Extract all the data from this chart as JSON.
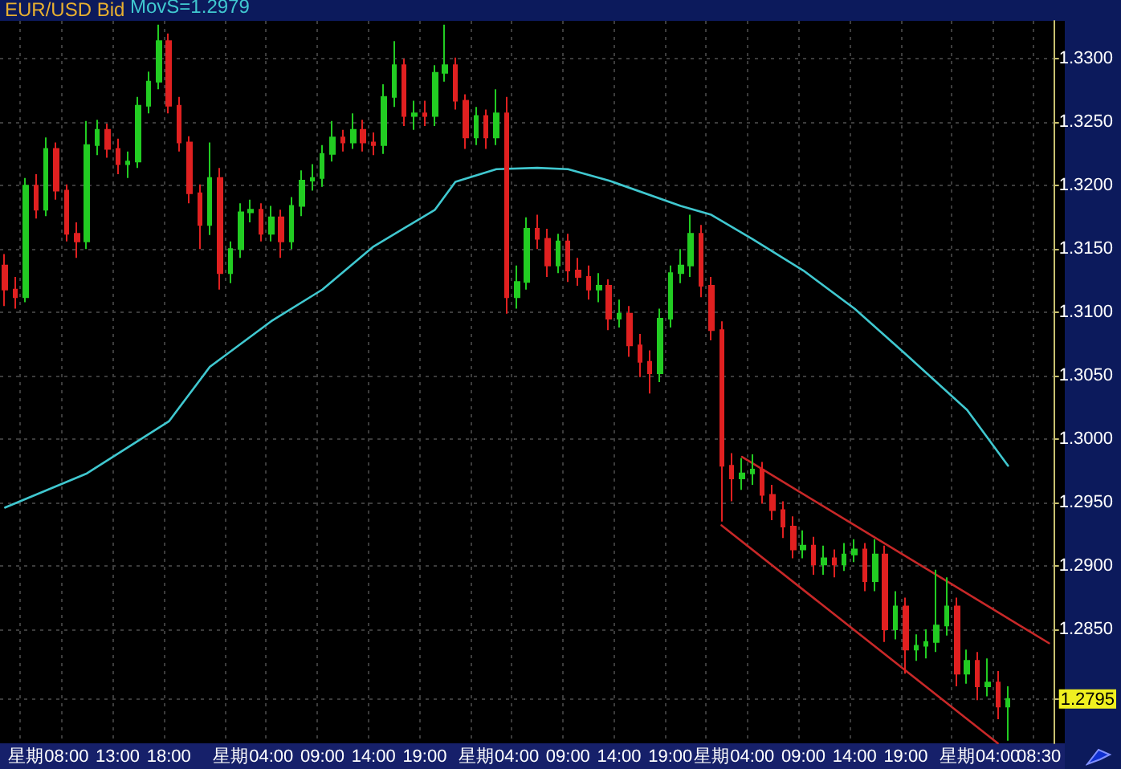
{
  "chart_data": {
    "type": "candlestick",
    "title": "EUR/USD Bid",
    "legend": "top left",
    "grid": true,
    "marker": "none",
    "line_style": "solid",
    "categories": [
      null,
      null,
      "星期",
      null,
      null,
      null,
      "08:00",
      null,
      null,
      null,
      null,
      "13:00",
      null,
      null,
      null,
      null,
      "18:00",
      null,
      null,
      null,
      null,
      null,
      "星期",
      null,
      null,
      null,
      "04:00",
      null,
      null,
      null,
      null,
      "09:00",
      null,
      null,
      null,
      null,
      "14:00",
      null,
      null,
      null,
      null,
      "19:00",
      null,
      null,
      null,
      null,
      "星期",
      null,
      null,
      null,
      "04:00",
      null,
      null,
      null,
      null,
      "09:00",
      null,
      null,
      null,
      null,
      "14:00",
      null,
      null,
      null,
      null,
      "19:00",
      null,
      null,
      null,
      "星期",
      null,
      null,
      null,
      "04:00",
      null,
      null,
      null,
      null,
      "09:00",
      null,
      null,
      null,
      null,
      "14:00",
      null,
      null,
      null,
      null,
      "19:00",
      null,
      null,
      null,
      null,
      "星期",
      null,
      null,
      null,
      "04:00",
      null,
      null,
      null,
      "08:30",
      null
    ],
    "ylim": [
      1.276,
      1.333
    ],
    "yticks": [
      {
        "value": 1.2795,
        "label": "1.2795"
      },
      {
        "value": 1.285,
        "label": "1.2850"
      },
      {
        "value": 1.29,
        "label": "1.2900"
      },
      {
        "value": 1.295,
        "label": "1.2950"
      },
      {
        "value": 1.3,
        "label": "1.3000"
      },
      {
        "value": 1.305,
        "label": "1.3050"
      },
      {
        "value": 1.31,
        "label": "1.3100"
      },
      {
        "value": 1.315,
        "label": "1.3150"
      },
      {
        "value": 1.32,
        "label": "1.3200"
      },
      {
        "value": 1.325,
        "label": "1.3250"
      },
      {
        "value": 1.33,
        "label": "1.3300"
      }
    ],
    "series": [
      {
        "type": "candlestick",
        "ohlc": [
          [
            1.3137,
            1.3146,
            1.3105,
            1.3118
          ],
          [
            1.3118,
            1.3128,
            1.3103,
            1.3112
          ],
          [
            1.3112,
            1.3206,
            1.3108,
            1.32
          ],
          [
            1.32,
            1.3209,
            1.3174,
            1.3181
          ],
          [
            1.3181,
            1.3238,
            1.3176,
            1.3229
          ],
          [
            1.3229,
            1.3234,
            1.3189,
            1.3196
          ],
          [
            1.3196,
            1.3201,
            1.3156,
            1.3162
          ],
          [
            1.3162,
            1.3171,
            1.3143,
            1.3156
          ],
          [
            1.3156,
            1.3251,
            1.315,
            1.3232
          ],
          [
            1.3232,
            1.3252,
            1.3224,
            1.3244
          ],
          [
            1.3244,
            1.3249,
            1.3222,
            1.3229
          ],
          [
            1.3229,
            1.3237,
            1.3209,
            1.3217
          ],
          [
            1.3217,
            1.3227,
            1.3206,
            1.3219
          ],
          [
            1.3219,
            1.327,
            1.3214,
            1.3263
          ],
          [
            1.3263,
            1.329,
            1.3257,
            1.3282
          ],
          [
            1.3282,
            1.3327,
            1.3276,
            1.3314
          ],
          [
            1.3314,
            1.332,
            1.3257,
            1.3263
          ],
          [
            1.3263,
            1.327,
            1.3227,
            1.3234
          ],
          [
            1.3234,
            1.3239,
            1.3186,
            1.3194
          ],
          [
            1.3194,
            1.3201,
            1.315,
            1.3169
          ],
          [
            1.3169,
            1.3234,
            1.3161,
            1.3206
          ],
          [
            1.3206,
            1.3214,
            1.3118,
            1.3131
          ],
          [
            1.3131,
            1.3156,
            1.3123,
            1.315
          ],
          [
            1.315,
            1.3186,
            1.3143,
            1.3179
          ],
          [
            1.3179,
            1.3189,
            1.3171,
            1.3181
          ],
          [
            1.3181,
            1.3186,
            1.3156,
            1.3162
          ],
          [
            1.3162,
            1.3184,
            1.3156,
            1.3175
          ],
          [
            1.3175,
            1.3181,
            1.3143,
            1.3156
          ],
          [
            1.3156,
            1.3191,
            1.315,
            1.3184
          ],
          [
            1.3184,
            1.3212,
            1.3176,
            1.3204
          ],
          [
            1.3204,
            1.3217,
            1.3196,
            1.3206
          ],
          [
            1.3206,
            1.3232,
            1.3199,
            1.3225
          ],
          [
            1.3225,
            1.3251,
            1.3219,
            1.3238
          ],
          [
            1.3238,
            1.3244,
            1.3227,
            1.3234
          ],
          [
            1.3234,
            1.3257,
            1.3229,
            1.3244
          ],
          [
            1.3244,
            1.3252,
            1.3227,
            1.3234
          ],
          [
            1.3234,
            1.3242,
            1.3224,
            1.3232
          ],
          [
            1.3232,
            1.328,
            1.3225,
            1.327
          ],
          [
            1.327,
            1.3314,
            1.3262,
            1.3295
          ],
          [
            1.3295,
            1.33,
            1.3247,
            1.3255
          ],
          [
            1.3255,
            1.3267,
            1.3244,
            1.3257
          ],
          [
            1.3257,
            1.3267,
            1.3247,
            1.3255
          ],
          [
            1.3255,
            1.3295,
            1.3247,
            1.3289
          ],
          [
            1.3289,
            1.3327,
            1.3282,
            1.3295
          ],
          [
            1.3295,
            1.3301,
            1.326,
            1.3267
          ],
          [
            1.3267,
            1.3272,
            1.3229,
            1.3238
          ],
          [
            1.3238,
            1.3262,
            1.3232,
            1.3255
          ],
          [
            1.3255,
            1.326,
            1.3229,
            1.3238
          ],
          [
            1.3238,
            1.3276,
            1.3232,
            1.3257
          ],
          [
            1.3257,
            1.327,
            1.3099,
            1.3112
          ],
          [
            1.3112,
            1.3137,
            1.3103,
            1.3124
          ],
          [
            1.3124,
            1.3175,
            1.3118,
            1.3166
          ],
          [
            1.3166,
            1.3177,
            1.315,
            1.3158
          ],
          [
            1.3158,
            1.3166,
            1.3128,
            1.3137
          ],
          [
            1.3137,
            1.3162,
            1.3131,
            1.3156
          ],
          [
            1.3156,
            1.3162,
            1.3124,
            1.3133
          ],
          [
            1.3133,
            1.3143,
            1.3121,
            1.3128
          ],
          [
            1.3128,
            1.3137,
            1.311,
            1.3118
          ],
          [
            1.3118,
            1.3131,
            1.3108,
            1.3121
          ],
          [
            1.3121,
            1.3126,
            1.3086,
            1.3095
          ],
          [
            1.3095,
            1.311,
            1.3088,
            1.3099
          ],
          [
            1.3099,
            1.3105,
            1.3065,
            1.3074
          ],
          [
            1.3074,
            1.3083,
            1.3049,
            1.3061
          ],
          [
            1.3061,
            1.307,
            1.3036,
            1.3052
          ],
          [
            1.3052,
            1.3103,
            1.3045,
            1.3095
          ],
          [
            1.3095,
            1.3137,
            1.3088,
            1.3131
          ],
          [
            1.3131,
            1.315,
            1.3123,
            1.3137
          ],
          [
            1.3137,
            1.3177,
            1.3128,
            1.3162
          ],
          [
            1.3162,
            1.3169,
            1.3112,
            1.3121
          ],
          [
            1.3121,
            1.3128,
            1.3078,
            1.3086
          ],
          [
            1.3086,
            1.3093,
            1.2935,
            1.2979
          ],
          [
            1.2979,
            1.2989,
            1.2951,
            1.2969
          ],
          [
            1.2969,
            1.2985,
            1.296,
            1.2973
          ],
          [
            1.2973,
            1.2988,
            1.2964,
            1.2976
          ],
          [
            1.2976,
            1.2982,
            1.2949,
            1.2956
          ],
          [
            1.2956,
            1.2964,
            1.2936,
            1.2944
          ],
          [
            1.2944,
            1.2951,
            1.2922,
            1.2931
          ],
          [
            1.2931,
            1.2939,
            1.2906,
            1.2913
          ],
          [
            1.2913,
            1.2928,
            1.2906,
            1.2916
          ],
          [
            1.2916,
            1.2923,
            1.2893,
            1.2901
          ],
          [
            1.2901,
            1.2916,
            1.2893,
            1.2906
          ],
          [
            1.2906,
            1.2913,
            1.2891,
            1.2901
          ],
          [
            1.2901,
            1.2918,
            1.2896,
            1.2909
          ],
          [
            1.2909,
            1.2921,
            1.2903,
            1.2913
          ],
          [
            1.2913,
            1.2918,
            1.288,
            1.2888
          ],
          [
            1.2888,
            1.2921,
            1.288,
            1.2909
          ],
          [
            1.2909,
            1.2916,
            1.284,
            1.285
          ],
          [
            1.285,
            1.288,
            1.2842,
            1.2868
          ],
          [
            1.2868,
            1.2875,
            1.2815,
            1.2834
          ],
          [
            1.2834,
            1.2846,
            1.2825,
            1.2837
          ],
          [
            1.2837,
            1.285,
            1.2827,
            1.284
          ],
          [
            1.284,
            1.2897,
            1.2832,
            1.2853
          ],
          [
            1.2853,
            1.2891,
            1.2845,
            1.2868
          ],
          [
            1.2868,
            1.2875,
            1.2805,
            1.2815
          ],
          [
            1.2815,
            1.2834,
            1.2807,
            1.2825
          ],
          [
            1.2825,
            1.2832,
            1.2794,
            1.2805
          ],
          [
            1.2805,
            1.2827,
            1.2797,
            1.2808
          ],
          [
            1.2808,
            1.2817,
            1.2779,
            1.2789
          ],
          [
            1.2789,
            1.2805,
            1.2762,
            1.2795
          ],
          null,
          null,
          null,
          null
        ],
        "colors": [
          "#e02020",
          "#e02020",
          "#22cc22",
          "#e02020",
          "#22cc22",
          "#e02020",
          "#e02020",
          "#e02020",
          "#22cc22",
          "#22cc22",
          "#e02020",
          "#e02020",
          "#22cc22",
          "#22cc22",
          "#22cc22",
          "#22cc22",
          "#e02020",
          "#e02020",
          "#e02020",
          "#e02020",
          "#22cc22",
          "#e02020",
          "#22cc22",
          "#22cc22",
          "#22cc22",
          "#e02020",
          "#22cc22",
          "#e02020",
          "#22cc22",
          "#22cc22",
          "#22cc22",
          "#22cc22",
          "#22cc22",
          "#e02020",
          "#22cc22",
          "#e02020",
          "#e02020",
          "#22cc22",
          "#22cc22",
          "#e02020",
          "#22cc22",
          "#e02020",
          "#22cc22",
          "#22cc22",
          "#e02020",
          "#e02020",
          "#22cc22",
          "#e02020",
          "#22cc22",
          "#e02020",
          "#22cc22",
          "#22cc22",
          "#e02020",
          "#e02020",
          "#22cc22",
          "#e02020",
          "#e02020",
          "#e02020",
          "#22cc22",
          "#e02020",
          "#22cc22",
          "#e02020",
          "#e02020",
          "#e02020",
          "#22cc22",
          "#22cc22",
          "#22cc22",
          "#22cc22",
          "#e02020",
          "#e02020",
          "#e02020",
          "#e02020",
          "#22cc22",
          "#22cc22",
          "#e02020",
          "#e02020",
          "#e02020",
          "#e02020",
          "#22cc22",
          "#e02020",
          "#22cc22",
          "#e02020",
          "#22cc22",
          "#22cc22",
          "#e02020",
          "#22cc22",
          "#e02020",
          "#22cc22",
          "#e02020",
          "#22cc22",
          "#22cc22",
          "#22cc22",
          "#22cc22",
          "#e02020",
          "#22cc22",
          "#e02020",
          "#22cc22",
          "#e02020",
          "#22cc22",
          null,
          null,
          null,
          null
        ]
      },
      {
        "type": "line",
        "name": "MovS=1.2979",
        "color": "#40c8d0",
        "values": [
          1.2946,
          null,
          null,
          null,
          null,
          null,
          null,
          null,
          1.2973,
          null,
          null,
          null,
          null,
          null,
          null,
          null,
          1.3014,
          null,
          null,
          null,
          1.3057,
          null,
          null,
          null,
          null,
          null,
          1.3093,
          null,
          null,
          null,
          null,
          1.3118,
          null,
          null,
          null,
          null,
          1.3152,
          null,
          null,
          null,
          null,
          null,
          1.3181,
          null,
          1.3203,
          null,
          null,
          null,
          1.3213,
          null,
          null,
          null,
          1.3214,
          null,
          null,
          1.3213,
          null,
          null,
          null,
          1.3204,
          null,
          null,
          null,
          null,
          null,
          null,
          1.3184,
          null,
          null,
          1.3177,
          null,
          null,
          null,
          1.3158,
          null,
          null,
          null,
          null,
          1.3133,
          null,
          null,
          null,
          null,
          1.3103,
          null,
          null,
          null,
          null,
          1.3067,
          null,
          null,
          null,
          null,
          null,
          1.3023,
          null,
          null,
          null,
          1.2979,
          null,
          null,
          null,
          null
        ]
      },
      {
        "type": "line",
        "color": "#c82828",
        "values": [
          null,
          null,
          null,
          null,
          null,
          null,
          null,
          null,
          null,
          null,
          null,
          null,
          null,
          null,
          null,
          null,
          null,
          null,
          null,
          null,
          null,
          null,
          null,
          null,
          null,
          null,
          null,
          null,
          null,
          null,
          null,
          null,
          null,
          null,
          null,
          null,
          null,
          null,
          null,
          null,
          null,
          null,
          null,
          null,
          null,
          null,
          null,
          null,
          null,
          null,
          null,
          null,
          null,
          null,
          null,
          null,
          null,
          null,
          null,
          null,
          null,
          null,
          null,
          null,
          null,
          null,
          null,
          null,
          null,
          null,
          null,
          null,
          1.2986,
          null,
          null,
          null,
          null,
          null,
          null,
          null,
          null,
          null,
          null,
          null,
          null,
          null,
          null,
          null,
          null,
          null,
          null,
          null,
          null,
          null,
          null,
          null,
          null,
          null,
          null,
          null,
          null,
          null,
          1.2839
        ]
      },
      {
        "type": "line",
        "color": "#c82828",
        "values": [
          null,
          null,
          null,
          null,
          null,
          null,
          null,
          null,
          null,
          null,
          null,
          null,
          null,
          null,
          null,
          null,
          null,
          null,
          null,
          null,
          null,
          null,
          null,
          null,
          null,
          null,
          null,
          null,
          null,
          null,
          null,
          null,
          null,
          null,
          null,
          null,
          null,
          null,
          null,
          null,
          null,
          null,
          null,
          null,
          null,
          null,
          null,
          null,
          null,
          null,
          null,
          null,
          null,
          null,
          null,
          null,
          null,
          null,
          null,
          null,
          null,
          null,
          null,
          null,
          null,
          null,
          null,
          null,
          null,
          null,
          1.2932,
          null,
          null,
          null,
          null,
          null,
          null,
          null,
          null,
          null,
          null,
          null,
          null,
          null,
          null,
          null,
          null,
          null,
          null,
          null,
          null,
          null,
          null,
          null,
          null,
          null,
          null,
          1.276,
          null,
          null,
          null,
          null,
          null
        ]
      }
    ]
  }
}
